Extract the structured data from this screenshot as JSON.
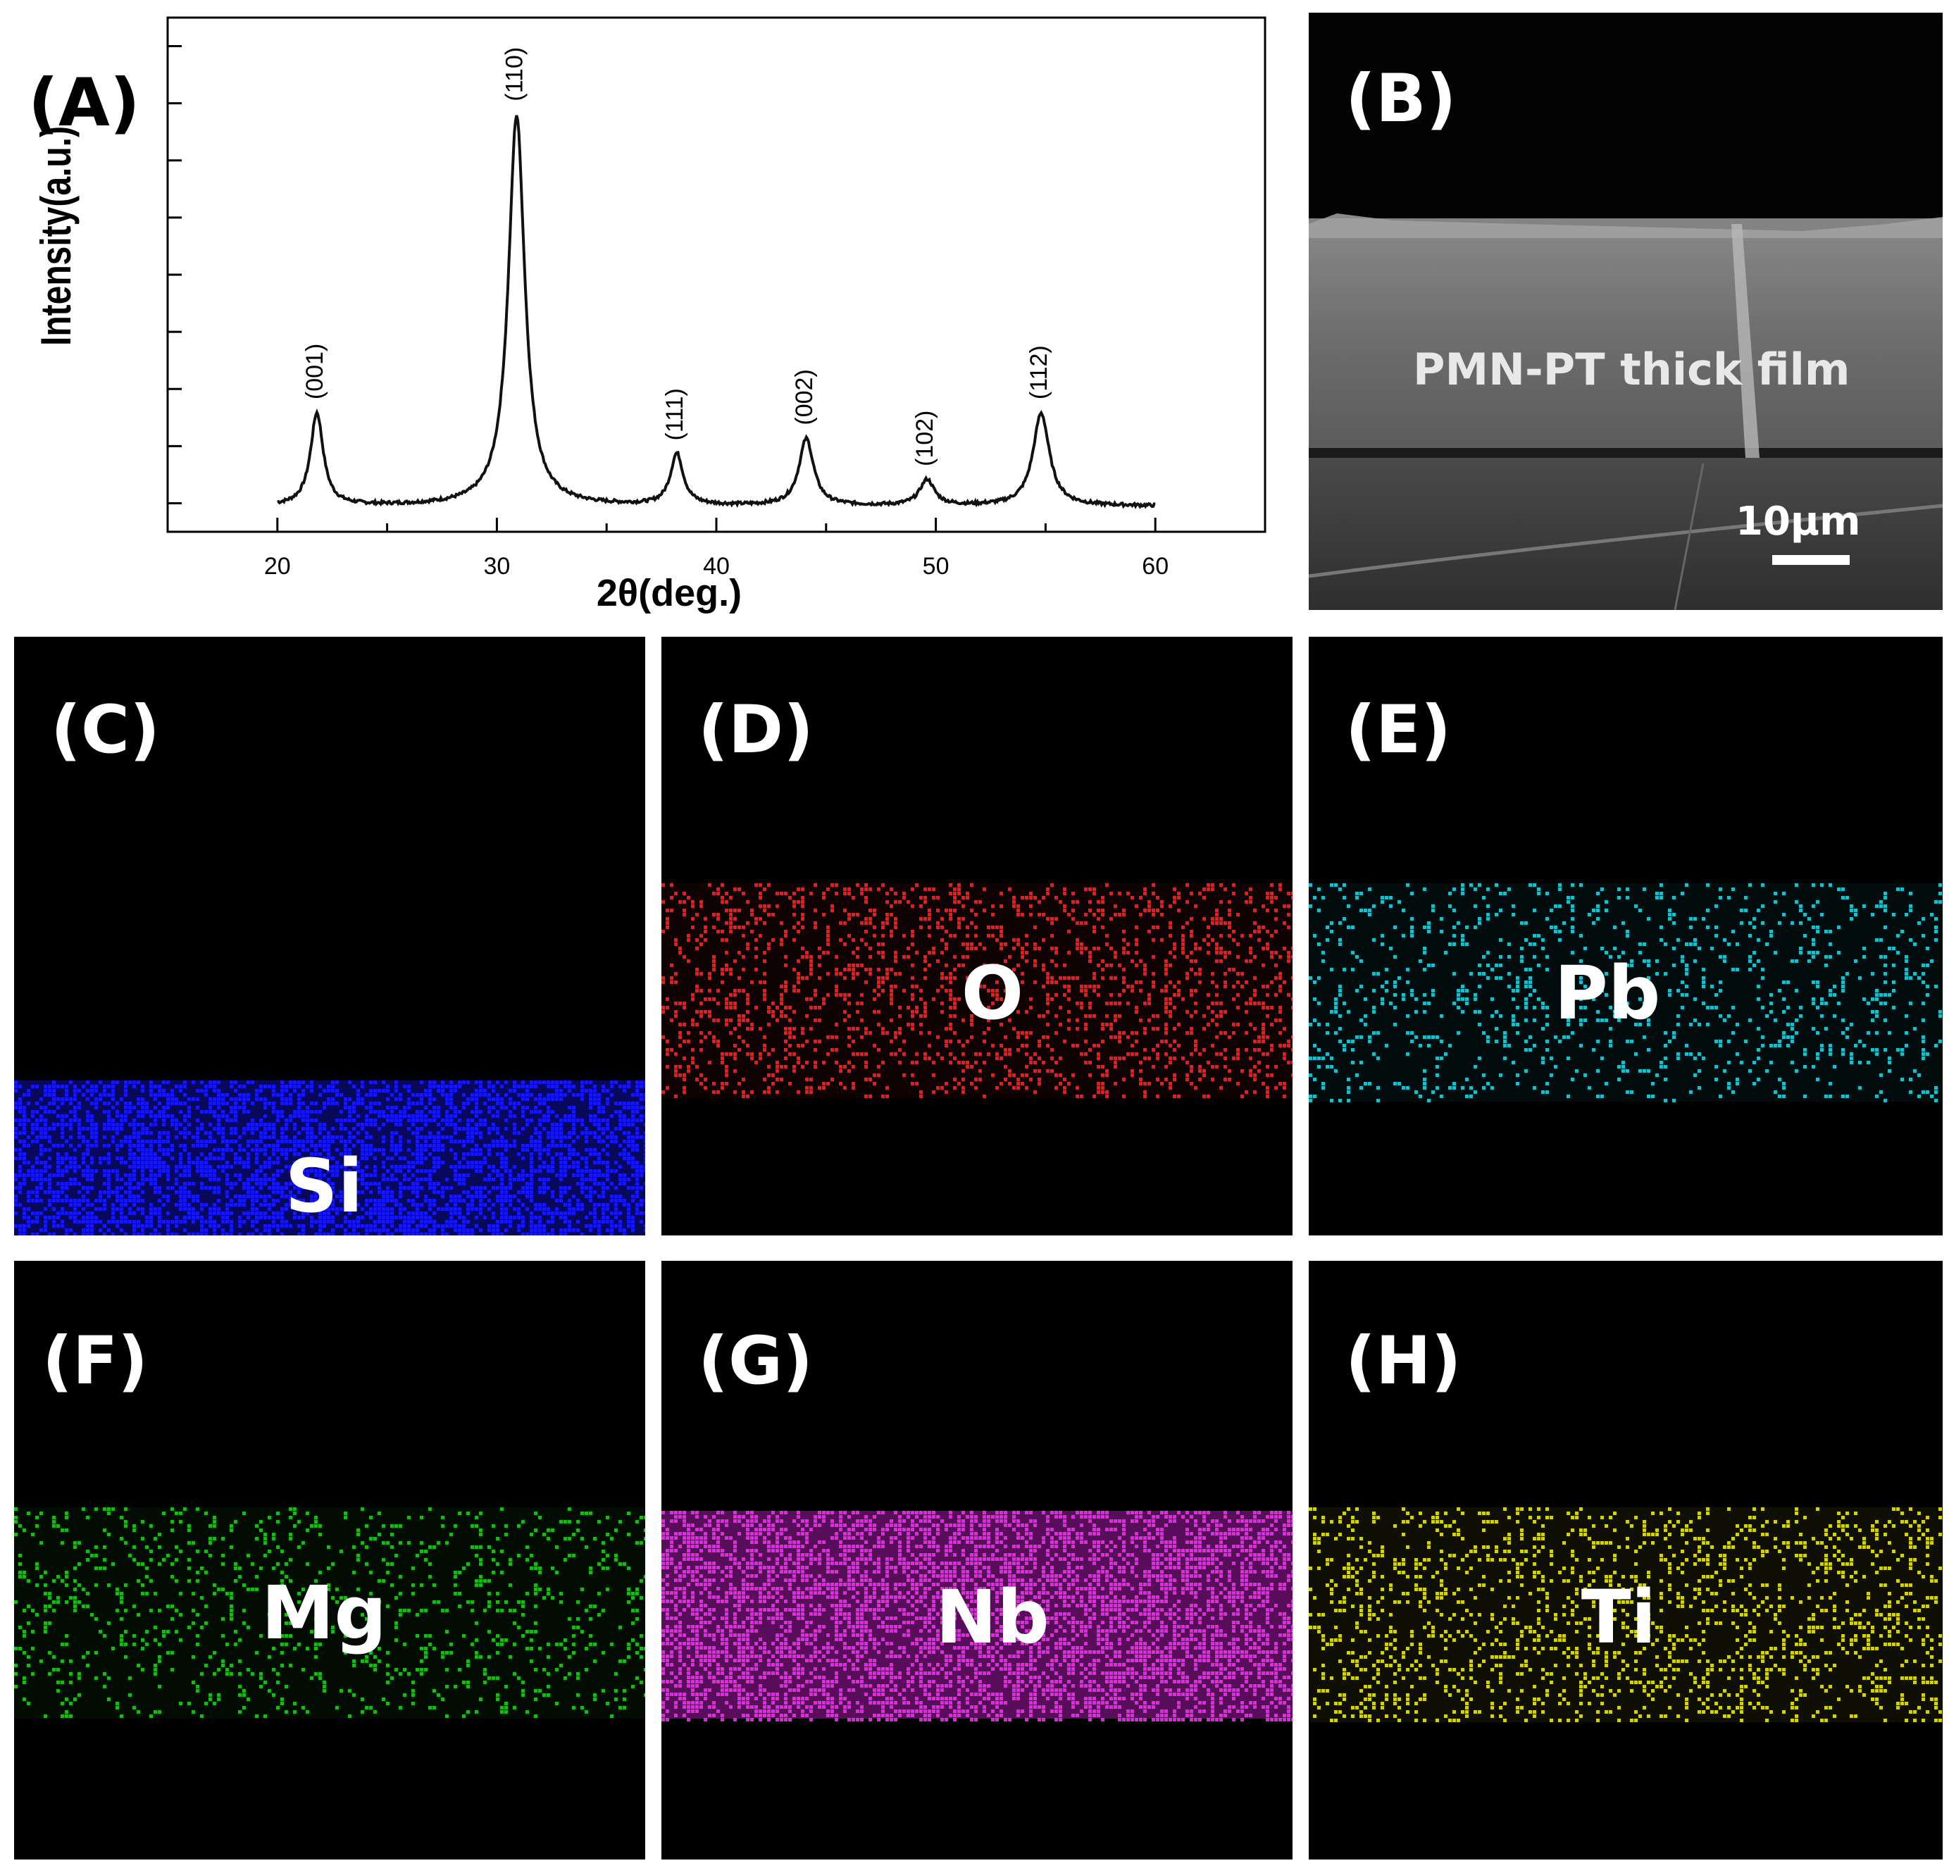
{
  "panels": {
    "A": {
      "letter": "(A)"
    },
    "B": {
      "letter": "(B)",
      "film_label": "PMN-PT thick film",
      "scale_bar": "10μm"
    },
    "C": {
      "letter": "(C)",
      "element": "Si",
      "color": "#1a1aff"
    },
    "D": {
      "letter": "(D)",
      "element": "O",
      "color": "#ff2020"
    },
    "E": {
      "letter": "(E)",
      "element": "Pb",
      "color": "#22cfdc"
    },
    "F": {
      "letter": "(F)",
      "element": "Mg",
      "color": "#22c81c"
    },
    "G": {
      "letter": "(G)",
      "element": "Nb",
      "color": "#ff22ff"
    },
    "H": {
      "letter": "(H)",
      "element": "Ti",
      "color": "#e6e61a"
    }
  },
  "chart_data": {
    "type": "line",
    "title": "",
    "xlabel": "2θ(deg.)",
    "ylabel": "Intensity(a.u.)",
    "xlim": [
      15,
      65
    ],
    "ylim": [
      0,
      1
    ],
    "x_ticks": [
      20,
      30,
      40,
      50,
      60
    ],
    "y_tick_count": 9,
    "grid": false,
    "series": [
      {
        "baseline": 0.05,
        "peaks": [
          {
            "x": 21.8,
            "height": 0.18,
            "width": 0.35,
            "label": "(001)"
          },
          {
            "x": 30.9,
            "height": 0.76,
            "width": 0.45,
            "label": "(110)"
          },
          {
            "x": 38.2,
            "height": 0.1,
            "width": 0.35,
            "label": "(111)"
          },
          {
            "x": 44.1,
            "height": 0.13,
            "width": 0.4,
            "label": "(002)"
          },
          {
            "x": 49.6,
            "height": 0.05,
            "width": 0.4,
            "label": "(102)"
          },
          {
            "x": 54.8,
            "height": 0.18,
            "width": 0.45,
            "label": "(112)"
          }
        ],
        "x_range": [
          20,
          60
        ]
      }
    ]
  }
}
